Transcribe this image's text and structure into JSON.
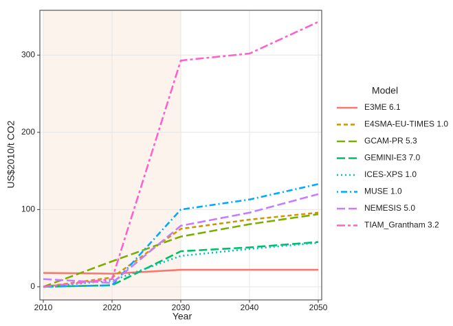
{
  "chart_data": {
    "type": "line",
    "x_label": "Year",
    "y_label": "US$2010/t CO2",
    "legend_title": "Model",
    "legend": "right",
    "grid": true,
    "shaded_x": [
      2010,
      2030
    ],
    "shade_color": "#fbf3ec",
    "x": [
      2010,
      2020,
      2030,
      2040,
      2050
    ],
    "xlim": [
      2009.5,
      2050.5
    ],
    "xticks": [
      2010,
      2020,
      2030,
      2040,
      2050
    ],
    "ylim": [
      -17,
      358
    ],
    "yticks": [
      0,
      100,
      200,
      300
    ],
    "series": [
      {
        "name": "E3ME 6.1",
        "color": "#F8766D",
        "linetype": "solid",
        "values": [
          18,
          17,
          22,
          22,
          22
        ]
      },
      {
        "name": "E4SMA-EU-TIMES 1.0",
        "color": "#CD9600",
        "linetype": "dashed",
        "values": [
          0,
          12,
          75,
          87,
          96
        ]
      },
      {
        "name": "GCAM-PR 5.3",
        "color": "#7CAE00",
        "linetype": "longdash",
        "values": [
          0,
          33,
          65,
          81,
          94
        ]
      },
      {
        "name": "GEMINI-E3 7.0",
        "color": "#00BE67",
        "linetype": "longdash",
        "values": [
          0,
          2,
          46,
          51,
          58
        ]
      },
      {
        "name": "ICES-XPS 1.0",
        "color": "#00BFC4",
        "linetype": "dotted",
        "values": [
          0,
          8,
          40,
          49,
          57
        ]
      },
      {
        "name": "MUSE 1.0",
        "color": "#00A9FF",
        "linetype": "dotdash",
        "values": [
          0,
          2,
          100,
          113,
          133
        ]
      },
      {
        "name": "NEMESIS 5.0",
        "color": "#C77CFF",
        "linetype": "longdash",
        "values": [
          10,
          5,
          79,
          96,
          120
        ]
      },
      {
        "name": "TIAM_Grantham 3.2",
        "color": "#FF61CC",
        "linetype": "twodash",
        "values": [
          0,
          10,
          293,
          302,
          343
        ]
      }
    ]
  }
}
